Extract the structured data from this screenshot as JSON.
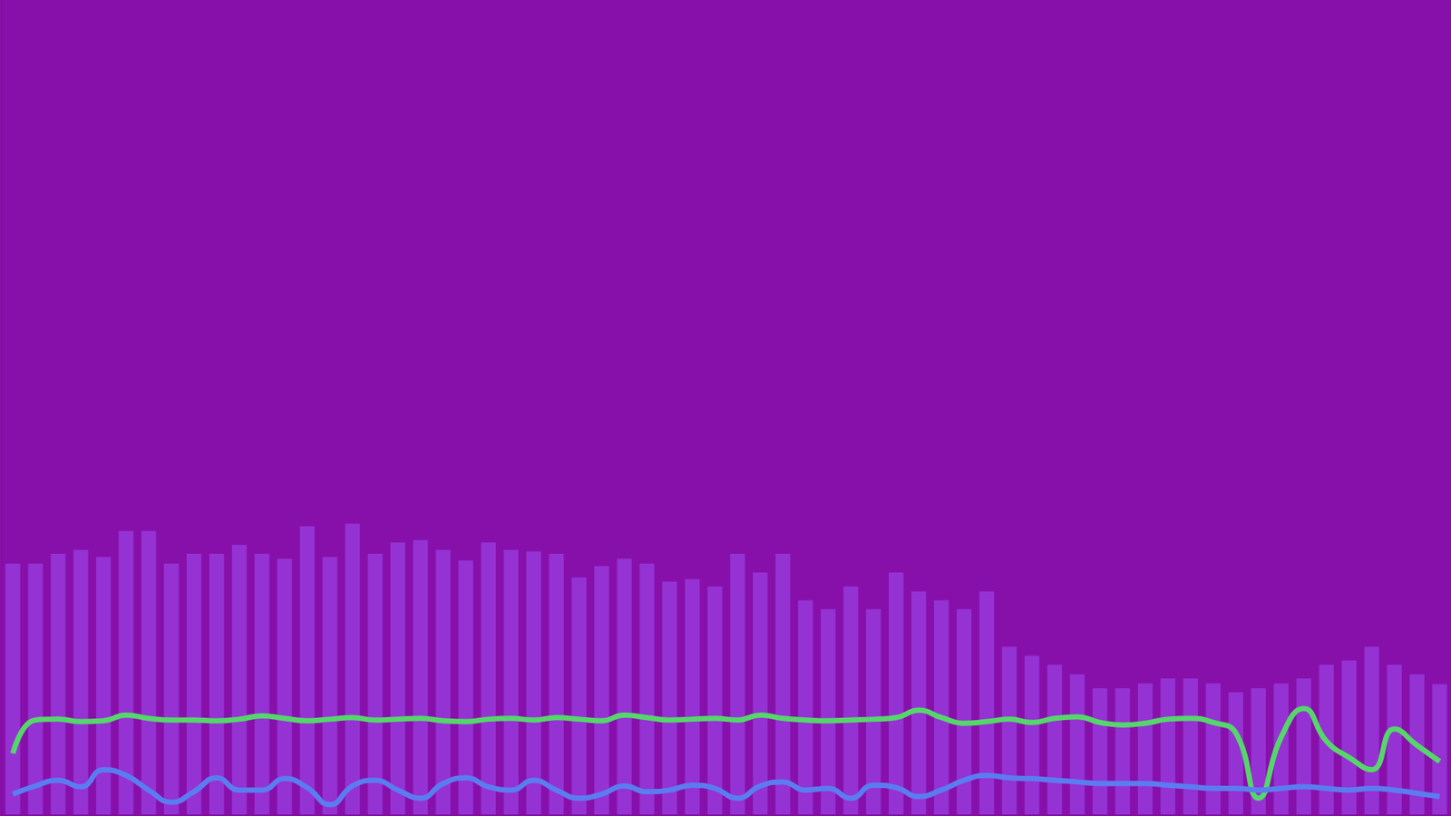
{
  "chart_data": {
    "type": "bar",
    "categories": [
      null,
      null,
      null,
      null,
      null,
      null,
      null,
      null,
      null,
      null,
      null,
      null,
      null,
      null,
      null,
      null,
      null,
      null,
      null,
      null,
      null,
      null,
      null,
      null,
      null,
      null,
      null,
      null,
      null,
      null,
      null,
      null,
      null,
      null,
      null,
      null,
      null,
      null,
      null,
      null,
      null,
      null,
      null,
      null,
      null,
      null,
      null,
      null,
      null,
      null,
      null,
      null,
      null,
      null,
      null,
      null,
      null,
      null,
      null,
      null,
      null,
      null,
      null,
      null
    ],
    "series": [
      {
        "type": "bar",
        "color": "#9a3ee0",
        "values": [
          30.8,
          30.8,
          32.0,
          32.5,
          31.6,
          34.8,
          34.8,
          30.8,
          32.0,
          32.0,
          33.1,
          32.0,
          31.4,
          35.4,
          31.6,
          35.7,
          32.0,
          33.4,
          33.7,
          32.5,
          31.2,
          33.4,
          32.5,
          32.3,
          32.0,
          29.1,
          30.5,
          31.4,
          30.8,
          28.6,
          28.9,
          28.0,
          32.0,
          29.7,
          32.0,
          26.3,
          25.2,
          28.0,
          25.2,
          29.7,
          27.4,
          26.3,
          25.2,
          27.4,
          20.6,
          19.5,
          18.4,
          17.2,
          15.5,
          15.5,
          16.1,
          16.7,
          16.7,
          16.1,
          15.0,
          15.5,
          16.1,
          16.7,
          18.4,
          18.9,
          20.6,
          18.4,
          17.2,
          16.0
        ]
      },
      {
        "type": "line",
        "color": "#55d66b",
        "values": [
          7.5,
          11.6,
          11.7,
          11.4,
          11.5,
          12.2,
          11.8,
          11.6,
          11.6,
          11.5,
          11.7,
          12.1,
          11.8,
          11.5,
          11.7,
          11.9,
          11.6,
          11.7,
          11.8,
          11.5,
          11.4,
          11.7,
          11.8,
          11.6,
          11.9,
          11.7,
          11.5,
          12.2,
          11.9,
          11.6,
          11.7,
          11.8,
          11.6,
          12.2,
          11.8,
          11.6,
          11.5,
          11.6,
          11.7,
          11.9,
          12.8,
          11.9,
          11.2,
          11.4,
          11.7,
          11.3,
          11.8,
          12.0,
          11.3,
          11.0,
          11.2,
          11.7,
          11.8,
          11.3,
          10.0,
          2.0,
          9.5,
          13.0,
          9.0,
          7.0,
          5.5,
          10.5,
          8.5,
          6.5
        ]
      },
      {
        "type": "line",
        "color": "#5b7cf0",
        "values": [
          2.5,
          3.5,
          4.2,
          3.4,
          5.5,
          4.8,
          3.0,
          1.5,
          2.8,
          4.5,
          3.0,
          3.0,
          4.4,
          3.3,
          1.2,
          3.5,
          4.2,
          3.0,
          2.0,
          3.8,
          4.5,
          3.4,
          3.0,
          4.2,
          3.0,
          2.0,
          2.5,
          3.5,
          2.8,
          3.0,
          3.6,
          3.2,
          2.0,
          3.5,
          4.0,
          3.0,
          3.2,
          2.0,
          3.6,
          3.3,
          2.2,
          3.0,
          4.2,
          4.8,
          4.5,
          4.4,
          4.2,
          4.0,
          3.8,
          3.8,
          3.8,
          3.6,
          3.4,
          3.2,
          3.2,
          3.0,
          3.2,
          3.4,
          3.2,
          3.0,
          3.2,
          3.0,
          2.6,
          2.2
        ]
      }
    ],
    "ylim": [
      0,
      100
    ],
    "tick_labels": false,
    "grid": false
  }
}
